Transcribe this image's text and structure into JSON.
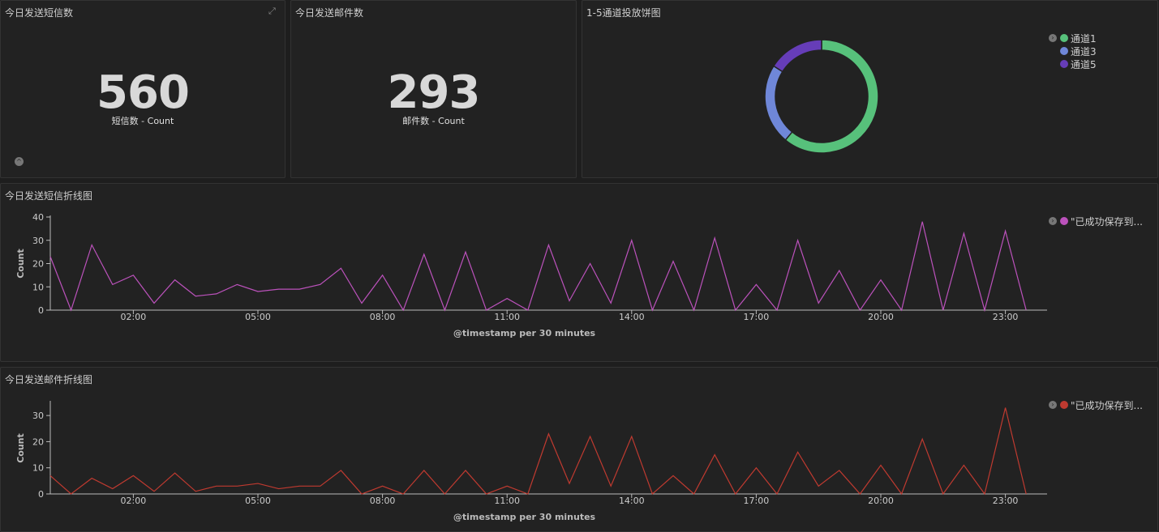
{
  "sms_count": {
    "title": "今日发送短信数",
    "value": "560",
    "label": "短信数 - Count"
  },
  "email_count": {
    "title": "今日发送邮件数",
    "value": "293",
    "label": "邮件数 - Count"
  },
  "pie": {
    "title": "1-5通道投放饼图",
    "chart_data": {
      "type": "pie",
      "slices": [
        {
          "name": "通道1",
          "value": 61,
          "color": "#57c17b"
        },
        {
          "name": "通道3",
          "value": 23,
          "color": "#6f87d8"
        },
        {
          "name": "通道5",
          "value": 16,
          "color": "#663db8"
        }
      ]
    }
  },
  "sms_line": {
    "title": "今日发送短信折线图",
    "legend": "\"已成功保存到...",
    "chart_data": {
      "type": "line",
      "color": "#bc52bc",
      "ylabel": "Count",
      "xlabel": "@timestamp per 30 minutes",
      "ylim": [
        0,
        40
      ],
      "yticks": [
        0,
        10,
        20,
        30,
        40
      ],
      "xticks": [
        "02:00",
        "05:00",
        "08:00",
        "11:00",
        "14:00",
        "17:00",
        "20:00",
        "23:00"
      ],
      "values": [
        23,
        0,
        28,
        11,
        15,
        3,
        13,
        6,
        7,
        11,
        8,
        9,
        9,
        11,
        18,
        3,
        15,
        0,
        24,
        0,
        25,
        0,
        5,
        0,
        28,
        4,
        20,
        3,
        30,
        0,
        21,
        0,
        31,
        0,
        11,
        0,
        30,
        3,
        17,
        0,
        13,
        0,
        38,
        0,
        33,
        0,
        34,
        0
      ]
    }
  },
  "email_line": {
    "title": "今日发送邮件折线图",
    "legend": "\"已成功保存到...",
    "chart_data": {
      "type": "line",
      "color": "#bf3a30",
      "ylabel": "Count",
      "xlabel": "@timestamp per 30 minutes",
      "ylim": [
        0,
        35
      ],
      "yticks": [
        0,
        10,
        20,
        30
      ],
      "xticks": [
        "02:00",
        "05:00",
        "08:00",
        "11:00",
        "14:00",
        "17:00",
        "20:00",
        "23:00"
      ],
      "values": [
        7,
        0,
        6,
        2,
        7,
        1,
        8,
        1,
        3,
        3,
        4,
        2,
        3,
        3,
        9,
        0,
        3,
        0,
        9,
        0,
        9,
        0,
        3,
        0,
        23,
        4,
        22,
        3,
        22,
        0,
        7,
        0,
        15,
        0,
        10,
        0,
        16,
        3,
        9,
        0,
        11,
        0,
        21,
        0,
        11,
        0,
        33,
        0
      ]
    }
  }
}
